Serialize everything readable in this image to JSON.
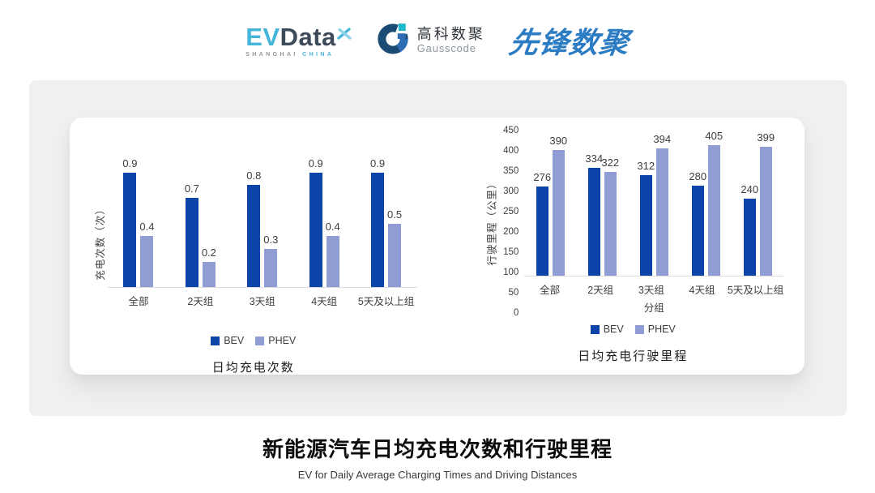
{
  "header": {
    "evdata": {
      "ev": "EV",
      "data": "Data",
      "sub_left": "SHANGHAI",
      "sub_right": "CHINA"
    },
    "gausscode": {
      "name_cn": "高科数聚",
      "name_en": "Gausscode"
    },
    "pioneer": {
      "name": "先锋数聚"
    }
  },
  "colors": {
    "bev": "#0d44a9",
    "phev": "#909cd4",
    "evdata_cyan": "#45b6da",
    "evdata_dark": "#3d4a59",
    "gausscode_navy": "#1b4a75",
    "gausscode_blue": "#2e6db3",
    "gausscode_teal": "#1fb9c9",
    "pioneer_blue": "#2b7cc2",
    "panel_gray": "#f0f0f0"
  },
  "chart_data": [
    {
      "type": "bar",
      "title": "日均充电次数",
      "ylabel": "充电次数（次）",
      "xlabel": "",
      "categories": [
        "全部",
        "2天组",
        "3天组",
        "4天组",
        "5天及以上组"
      ],
      "series": [
        {
          "name": "BEV",
          "values": [
            0.9,
            0.7,
            0.8,
            0.9,
            0.9
          ]
        },
        {
          "name": "PHEV",
          "values": [
            0.4,
            0.2,
            0.3,
            0.4,
            0.5
          ]
        }
      ],
      "ylim": [
        0,
        1.0
      ],
      "yticks": [],
      "grid": false,
      "legend": [
        "BEV",
        "PHEV"
      ],
      "legend_position": "bottom"
    },
    {
      "type": "bar",
      "title": "日均充电行驶里程",
      "ylabel": "行驶里程（公里）",
      "xlabel": "分组",
      "categories": [
        "全部",
        "2天组",
        "3天组",
        "4天组",
        "5天及以上组"
      ],
      "series": [
        {
          "name": "BEV",
          "values": [
            276,
            334,
            312,
            280,
            240
          ]
        },
        {
          "name": "PHEV",
          "values": [
            390,
            322,
            394,
            405,
            399
          ]
        }
      ],
      "ylim": [
        0,
        450
      ],
      "yticks": [
        0,
        50,
        100,
        150,
        200,
        250,
        300,
        350,
        400,
        450
      ],
      "grid": false,
      "legend": [
        "BEV",
        "PHEV"
      ],
      "legend_position": "bottom"
    }
  ],
  "footer": {
    "title": "新能源汽车日均充电次数和行驶里程",
    "subtitle": "EV for Daily Average Charging Times and Driving Distances"
  }
}
